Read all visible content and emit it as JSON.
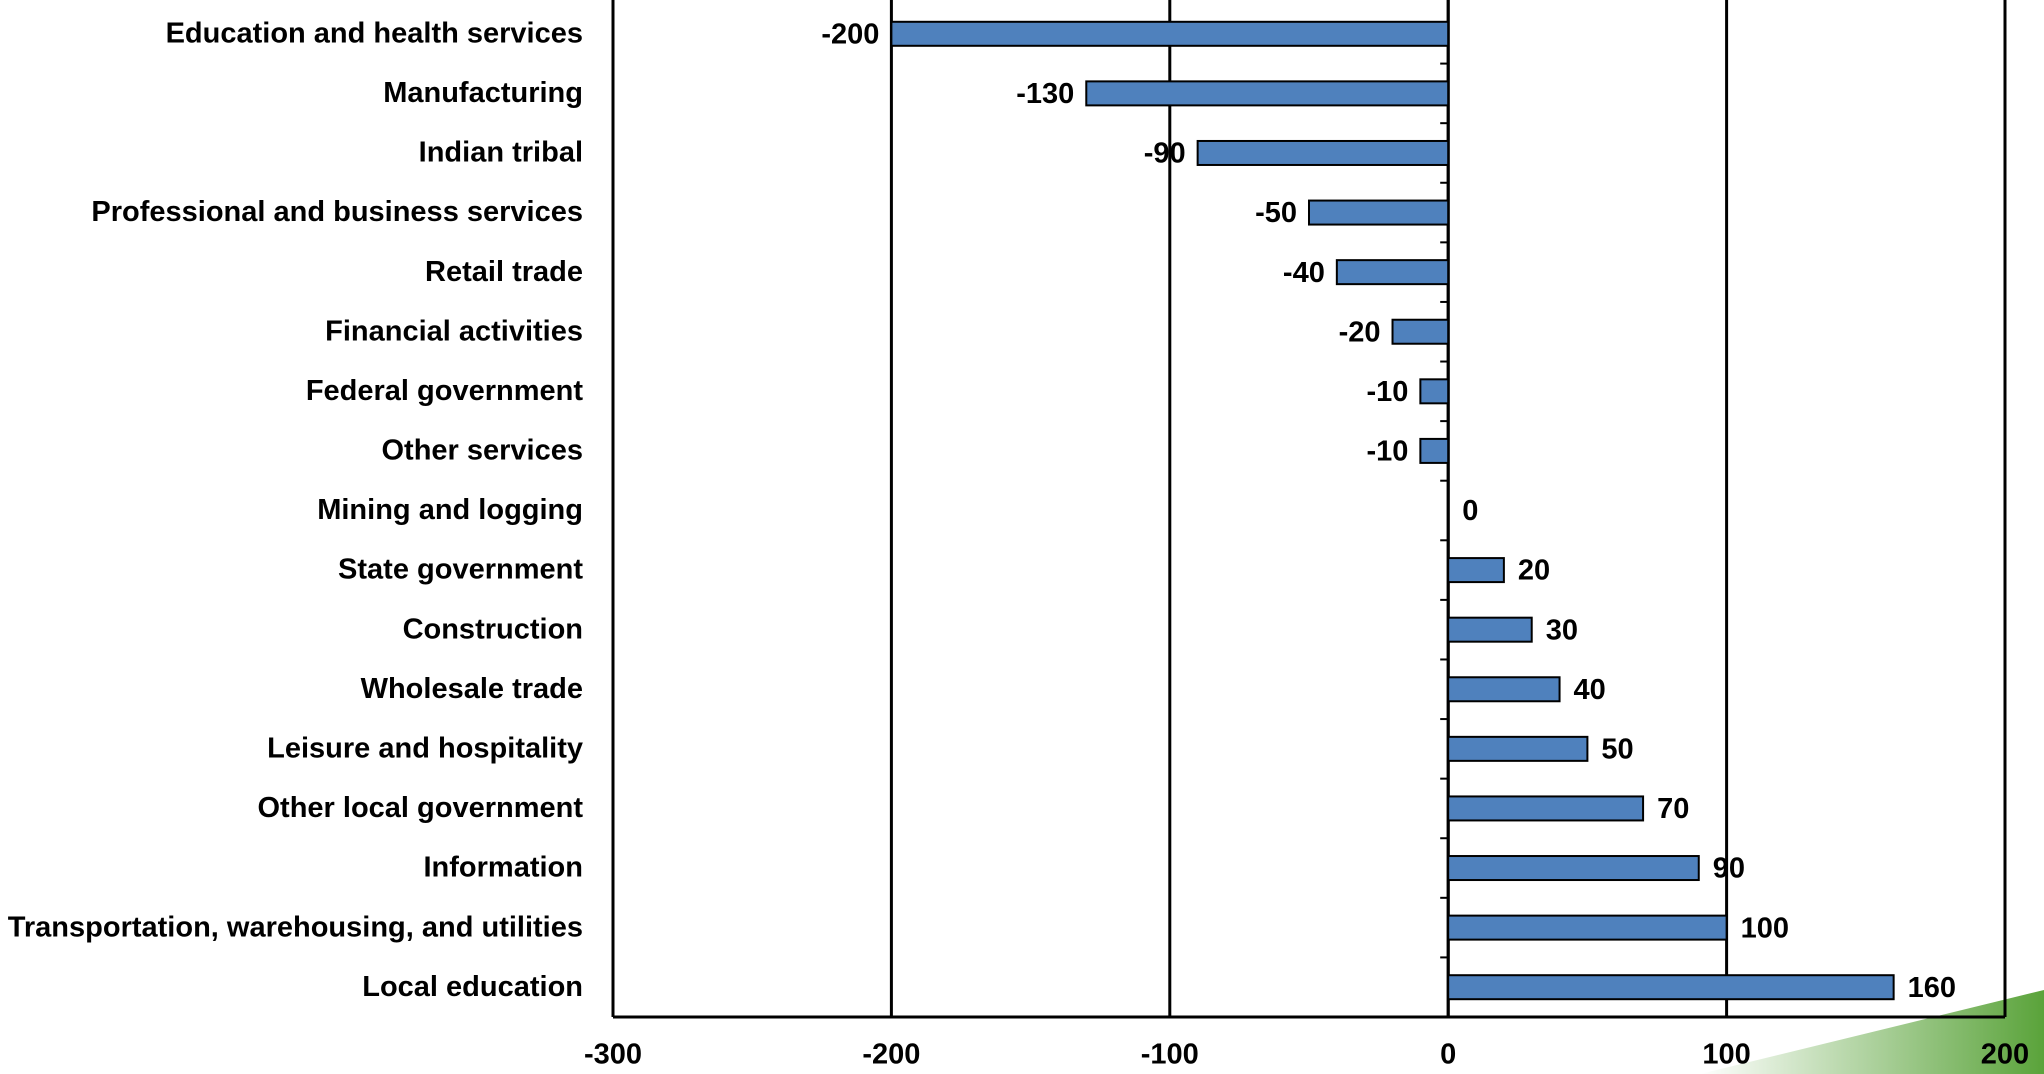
{
  "chart_data": {
    "type": "hbar",
    "categories": [
      "Education and health services",
      "Manufacturing",
      "Indian tribal",
      "Professional and business services",
      "Retail trade",
      "Financial activities",
      "Federal government",
      "Other services",
      "Mining and logging",
      "State government",
      "Construction",
      "Wholesale trade",
      "Leisure and hospitality",
      "Other local government",
      "Information",
      "Transportation, warehousing, and utilities",
      "Local education"
    ],
    "values": [
      -200,
      -130,
      -90,
      -50,
      -40,
      -20,
      -10,
      -10,
      0,
      20,
      30,
      40,
      50,
      70,
      90,
      100,
      160
    ],
    "color": "#4f81bd",
    "xlim": [
      -300,
      200
    ],
    "xticks": [
      -300,
      -200,
      -100,
      0,
      100,
      200
    ],
    "grid": true
  }
}
